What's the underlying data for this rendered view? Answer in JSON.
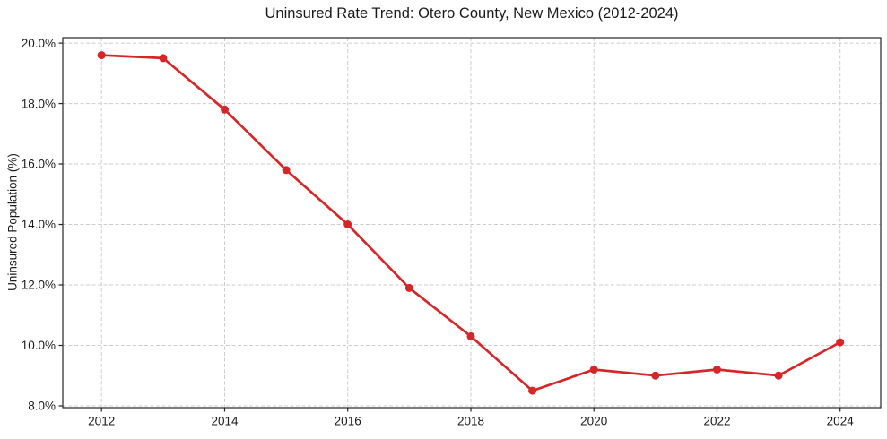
{
  "chart_data": {
    "type": "line",
    "title": "Uninsured Rate Trend: Otero County, New Mexico (2012-2024)",
    "xlabel": "",
    "ylabel": "Uninsured Population (%)",
    "x": [
      2012,
      2013,
      2014,
      2015,
      2016,
      2017,
      2018,
      2019,
      2020,
      2021,
      2022,
      2023,
      2024
    ],
    "values": [
      19.6,
      19.5,
      17.8,
      15.8,
      14.0,
      11.9,
      10.3,
      8.5,
      9.2,
      9.0,
      9.2,
      9.0,
      10.1
    ],
    "xlim": [
      2011.37,
      2024.66
    ],
    "ylim": [
      7.94,
      20.18
    ],
    "x_ticks": {
      "values": [
        2012,
        2014,
        2016,
        2018,
        2020,
        2022,
        2024
      ],
      "labels": [
        "2012",
        "2014",
        "2016",
        "2018",
        "2020",
        "2022",
        "2024"
      ]
    },
    "y_ticks": {
      "values": [
        8,
        10,
        12,
        14,
        16,
        18,
        20
      ],
      "labels": [
        "8.0%",
        "10.0%",
        "12.0%",
        "14.0%",
        "16.0%",
        "18.0%",
        "20.0%"
      ]
    },
    "grid": "dashed-both-axes",
    "legend_position": "none",
    "colors": {
      "line": "#d62728",
      "marker": "#d62728",
      "grid": "#cccccc",
      "spine": "#262626",
      "text": "#1a1a1a",
      "background": "#ffffff"
    },
    "style": {
      "marker_shape": "circle",
      "marker_radius": 4.5,
      "line_width": 2.7
    }
  }
}
